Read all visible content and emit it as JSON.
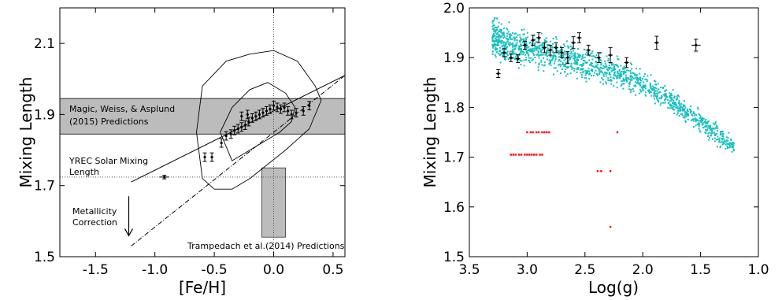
{
  "chart_data": [
    {
      "type": "scatter",
      "xlabel": "[Fe/H]",
      "ylabel": "Mixing Length",
      "xlim": [
        -1.8,
        0.6
      ],
      "ylim": [
        1.5,
        2.2
      ],
      "xticks": [
        "-1.5",
        "-1.0",
        "-0.5",
        "0.0",
        "0.5"
      ],
      "xtick_values": [
        -1.5,
        -1.0,
        -0.5,
        0.0,
        0.5
      ],
      "yticks": [
        "1.5",
        "1.7",
        "1.9",
        "2.1"
      ],
      "ytick_values": [
        1.5,
        1.7,
        1.9,
        2.1
      ],
      "points": [
        {
          "x": -0.92,
          "y": 1.724,
          "xerr": 0.04,
          "yerr": 0.005
        },
        {
          "x": -0.58,
          "y": 1.78,
          "yerr": 0.012
        },
        {
          "x": -0.52,
          "y": 1.78,
          "yerr": 0.012
        },
        {
          "x": -0.44,
          "y": 1.82,
          "yerr": 0.012
        },
        {
          "x": -0.4,
          "y": 1.84,
          "yerr": 0.012
        },
        {
          "x": -0.36,
          "y": 1.845,
          "yerr": 0.012
        },
        {
          "x": -0.33,
          "y": 1.855,
          "yerr": 0.012
        },
        {
          "x": -0.3,
          "y": 1.86,
          "yerr": 0.012
        },
        {
          "x": -0.27,
          "y": 1.865,
          "yerr": 0.012
        },
        {
          "x": -0.24,
          "y": 1.87,
          "yerr": 0.012
        },
        {
          "x": -0.21,
          "y": 1.88,
          "yerr": 0.012
        },
        {
          "x": -0.18,
          "y": 1.89,
          "yerr": 0.012
        },
        {
          "x": -0.15,
          "y": 1.895,
          "yerr": 0.012
        },
        {
          "x": -0.12,
          "y": 1.9,
          "yerr": 0.012
        },
        {
          "x": -0.09,
          "y": 1.905,
          "yerr": 0.012
        },
        {
          "x": -0.06,
          "y": 1.91,
          "yerr": 0.012
        },
        {
          "x": -0.03,
          "y": 1.915,
          "yerr": 0.012
        },
        {
          "x": 0.0,
          "y": 1.925,
          "yerr": 0.012
        },
        {
          "x": 0.03,
          "y": 1.92,
          "yerr": 0.012
        },
        {
          "x": 0.06,
          "y": 1.915,
          "yerr": 0.012
        },
        {
          "x": 0.09,
          "y": 1.92,
          "yerr": 0.012
        },
        {
          "x": 0.12,
          "y": 1.91,
          "yerr": 0.012
        },
        {
          "x": 0.15,
          "y": 1.9,
          "yerr": 0.012
        },
        {
          "x": 0.19,
          "y": 1.905,
          "yerr": 0.012
        },
        {
          "x": 0.25,
          "y": 1.91,
          "yerr": 0.012
        },
        {
          "x": 0.3,
          "y": 1.925,
          "yerr": 0.012
        },
        {
          "x": -0.22,
          "y": 1.9,
          "yerr": 0.012
        },
        {
          "x": -0.27,
          "y": 1.895,
          "yerr": 0.012
        }
      ],
      "shaded_band": {
        "y_min": 1.845,
        "y_max": 1.945,
        "label": "Magic, Weiss, & Asplund (2015) Predictions"
      },
      "shaded_box": {
        "x_min": -0.1,
        "x_max": 0.1,
        "y_min": 1.555,
        "y_max": 1.75,
        "label": "Trampedach et al.(2014) Predictions"
      },
      "solar_line": {
        "y": 1.724,
        "label": "YREC Solar Mixing Length"
      },
      "zero_line": {
        "x": 0.0
      },
      "fit_line": {
        "x": [
          -1.2,
          0.6
        ],
        "y": [
          1.71,
          2.01
        ]
      },
      "corrected_line": {
        "x": [
          -1.2,
          0.6
        ],
        "y": [
          1.53,
          2.01
        ]
      },
      "arrow": {
        "x": -1.2,
        "y_from": 1.71,
        "y_to": 1.55,
        "label": "Metallicity Correction"
      },
      "contour_outer": {
        "x": [
          -0.6,
          -0.4,
          -0.2,
          0.0,
          0.2,
          0.35,
          0.4,
          0.3,
          0.1,
          -0.05,
          -0.2,
          -0.35,
          -0.5,
          -0.6,
          -0.65,
          -0.6
        ],
        "y": [
          1.98,
          2.05,
          2.07,
          2.08,
          2.05,
          1.98,
          1.94,
          1.86,
          1.8,
          1.76,
          1.72,
          1.69,
          1.69,
          1.72,
          1.85,
          1.98
        ]
      },
      "contour_inner": {
        "x": [
          -0.35,
          -0.2,
          -0.05,
          0.1,
          0.18,
          0.15,
          0.05,
          -0.05,
          -0.2,
          -0.35,
          -0.45,
          -0.35
        ],
        "y": [
          1.92,
          1.97,
          1.99,
          1.96,
          1.92,
          1.88,
          1.85,
          1.83,
          1.8,
          1.77,
          1.85,
          1.92
        ]
      }
    },
    {
      "type": "scatter",
      "xlabel": "Log(g)",
      "ylabel": "Mixing Length",
      "xlim": [
        3.5,
        1.0
      ],
      "ylim": [
        1.5,
        2.0
      ],
      "xticks": [
        "3.5",
        "3.0",
        "2.5",
        "2.0",
        "1.5",
        "1.0"
      ],
      "xtick_values": [
        3.5,
        3.0,
        2.5,
        2.0,
        1.5,
        1.0
      ],
      "yticks": [
        "1.5",
        "1.6",
        "1.7",
        "1.8",
        "1.9",
        "2.0"
      ],
      "ytick_values": [
        1.5,
        1.6,
        1.7,
        1.8,
        1.9,
        2.0
      ],
      "cyan_trend": {
        "x": [
          3.3,
          3.0,
          2.7,
          2.4,
          2.1,
          1.8,
          1.5,
          1.2
        ],
        "y": [
          1.94,
          1.915,
          1.9,
          1.88,
          1.86,
          1.82,
          1.77,
          1.72
        ],
        "color": "#17bfbf"
      },
      "black_points": [
        {
          "x": 3.25,
          "y": 1.868,
          "xerr": 0.02,
          "yerr": 0.008
        },
        {
          "x": 3.2,
          "y": 1.91,
          "xerr": 0.02,
          "yerr": 0.008
        },
        {
          "x": 3.14,
          "y": 1.9,
          "xerr": 0.02,
          "yerr": 0.008
        },
        {
          "x": 3.08,
          "y": 1.898,
          "xerr": 0.02,
          "yerr": 0.008
        },
        {
          "x": 3.02,
          "y": 1.925,
          "xerr": 0.02,
          "yerr": 0.008
        },
        {
          "x": 2.95,
          "y": 1.935,
          "xerr": 0.02,
          "yerr": 0.01
        },
        {
          "x": 2.9,
          "y": 1.94,
          "xerr": 0.02,
          "yerr": 0.01
        },
        {
          "x": 2.85,
          "y": 1.92,
          "xerr": 0.02,
          "yerr": 0.01
        },
        {
          "x": 2.8,
          "y": 1.915,
          "xerr": 0.02,
          "yerr": 0.01
        },
        {
          "x": 2.75,
          "y": 1.92,
          "xerr": 0.02,
          "yerr": 0.01
        },
        {
          "x": 2.7,
          "y": 1.91,
          "xerr": 0.02,
          "yerr": 0.01
        },
        {
          "x": 2.65,
          "y": 1.9,
          "xerr": 0.02,
          "yerr": 0.012
        },
        {
          "x": 2.6,
          "y": 1.93,
          "xerr": 0.02,
          "yerr": 0.012
        },
        {
          "x": 2.55,
          "y": 1.94,
          "xerr": 0.02,
          "yerr": 0.01
        },
        {
          "x": 2.47,
          "y": 1.915,
          "xerr": 0.02,
          "yerr": 0.01
        },
        {
          "x": 2.38,
          "y": 1.9,
          "xerr": 0.02,
          "yerr": 0.01
        },
        {
          "x": 2.28,
          "y": 1.905,
          "xerr": 0.02,
          "yerr": 0.015
        },
        {
          "x": 2.14,
          "y": 1.89,
          "xerr": 0.02,
          "yerr": 0.01
        },
        {
          "x": 1.88,
          "y": 1.93,
          "xerr": 0.02,
          "yerr": 0.013
        },
        {
          "x": 1.54,
          "y": 1.925,
          "xerr": 0.04,
          "yerr": 0.012
        }
      ],
      "red_points": {
        "x": [
          3.0,
          2.97,
          2.95,
          2.92,
          2.9,
          2.87,
          2.85,
          2.83,
          2.81,
          3.14,
          3.12,
          3.1,
          3.07,
          3.05,
          3.02,
          3.0,
          2.98,
          2.96,
          2.94,
          2.92,
          2.89,
          2.87,
          2.22,
          2.39,
          2.36,
          2.28,
          2.28
        ],
        "y": [
          1.75,
          1.75,
          1.75,
          1.75,
          1.75,
          1.75,
          1.75,
          1.75,
          1.75,
          1.705,
          1.705,
          1.705,
          1.705,
          1.705,
          1.705,
          1.705,
          1.705,
          1.705,
          1.705,
          1.705,
          1.705,
          1.705,
          1.75,
          1.672,
          1.672,
          1.672,
          1.56
        ],
        "color": "#ff0000"
      }
    }
  ],
  "annotations": {
    "band_label_line1": "Magic, Weiss, & Asplund",
    "band_label_line2": "(2015) Predictions",
    "solar_label_line1": "YREC Solar Mixing",
    "solar_label_line2": "Length",
    "arrow_label_line1": "Metallicity",
    "arrow_label_line2": "Correction",
    "box_label": "Trampedach et al.(2014) Predictions"
  }
}
